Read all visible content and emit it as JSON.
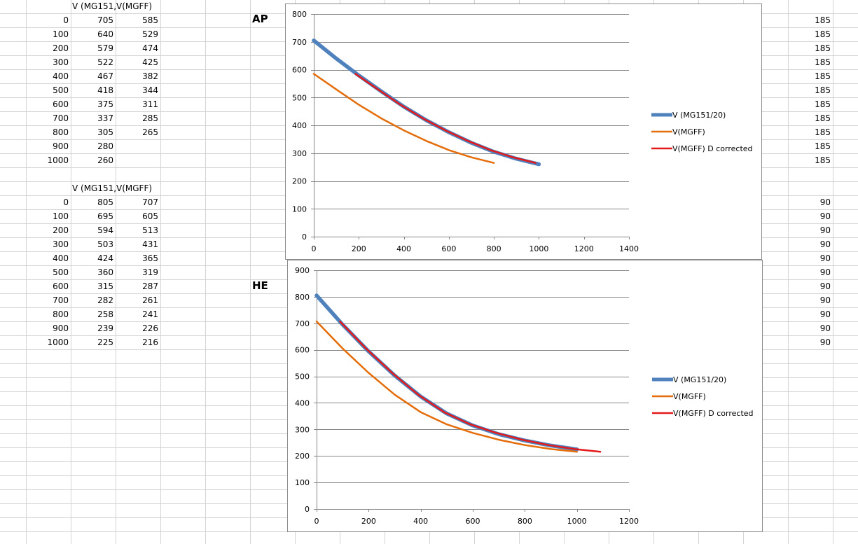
{
  "sheet": {
    "table_ap": {
      "headers": [
        "V (MG151,",
        "V(MGFF)"
      ],
      "rows": [
        [
          "0",
          "705",
          "585"
        ],
        [
          "100",
          "640",
          "529"
        ],
        [
          "200",
          "579",
          "474"
        ],
        [
          "300",
          "522",
          "425"
        ],
        [
          "400",
          "467",
          "382"
        ],
        [
          "500",
          "418",
          "344"
        ],
        [
          "600",
          "375",
          "311"
        ],
        [
          "700",
          "337",
          "285"
        ],
        [
          "800",
          "305",
          "265"
        ],
        [
          "900",
          "280",
          ""
        ],
        [
          "1000",
          "260",
          ""
        ]
      ]
    },
    "table_he": {
      "headers": [
        "V (MG151,",
        "V(MGFF)"
      ],
      "rows": [
        [
          "0",
          "805",
          "707"
        ],
        [
          "100",
          "695",
          "605"
        ],
        [
          "200",
          "594",
          "513"
        ],
        [
          "300",
          "503",
          "431"
        ],
        [
          "400",
          "424",
          "365"
        ],
        [
          "500",
          "360",
          "319"
        ],
        [
          "600",
          "315",
          "287"
        ],
        [
          "700",
          "282",
          "261"
        ],
        [
          "800",
          "258",
          "241"
        ],
        [
          "900",
          "239",
          "226"
        ],
        [
          "1000",
          "225",
          "216"
        ]
      ]
    },
    "right_col_ap": [
      "185",
      "185",
      "185",
      "185",
      "185",
      "185",
      "185",
      "185",
      "185",
      "185",
      "185"
    ],
    "right_col_he": [
      "90",
      "90",
      "90",
      "90",
      "90",
      "90",
      "90",
      "90",
      "90",
      "90",
      "90"
    ],
    "label_ap": "AP",
    "label_he": "HE",
    "colors": {
      "gridline": "#d4d4d4",
      "blue": "#4f81bd",
      "orange": "#e46c0a",
      "red": "#e31a1c"
    }
  },
  "chart_data": [
    {
      "type": "line",
      "xlim": [
        0,
        1400
      ],
      "ylim": [
        0,
        800
      ],
      "xticks": [
        0,
        200,
        400,
        600,
        800,
        1000,
        1200,
        1400
      ],
      "yticks": [
        0,
        100,
        200,
        300,
        400,
        500,
        600,
        700,
        800
      ],
      "grid": "horizontal",
      "legend_placement": "right",
      "series": [
        {
          "name": "V (MG151/20)",
          "color": "#4f81bd",
          "width": "thick",
          "x": [
            0,
            100,
            200,
            300,
            400,
            500,
            600,
            700,
            800,
            900,
            1000
          ],
          "y": [
            705,
            640,
            579,
            522,
            467,
            418,
            375,
            337,
            305,
            280,
            260
          ]
        },
        {
          "name": "V(MGFF)",
          "color": "#e46c0a",
          "width": "normal",
          "x": [
            0,
            100,
            200,
            300,
            400,
            500,
            600,
            700,
            800
          ],
          "y": [
            585,
            529,
            474,
            425,
            382,
            344,
            311,
            285,
            265
          ]
        },
        {
          "name": "V(MGFF) D corrected",
          "color": "#e31a1c",
          "width": "normal",
          "x": [
            185,
            285,
            385,
            485,
            585,
            685,
            785,
            885,
            985
          ],
          "y": [
            585,
            529,
            474,
            425,
            382,
            344,
            311,
            285,
            265
          ]
        }
      ]
    },
    {
      "type": "line",
      "xlim": [
        0,
        1200
      ],
      "ylim": [
        0,
        900
      ],
      "xticks": [
        0,
        200,
        400,
        600,
        800,
        1000,
        1200
      ],
      "yticks": [
        0,
        100,
        200,
        300,
        400,
        500,
        600,
        700,
        800,
        900
      ],
      "grid": "horizontal",
      "legend_placement": "right",
      "series": [
        {
          "name": "V (MG151/20)",
          "color": "#4f81bd",
          "width": "thick",
          "x": [
            0,
            100,
            200,
            300,
            400,
            500,
            600,
            700,
            800,
            900,
            1000
          ],
          "y": [
            805,
            695,
            594,
            503,
            424,
            360,
            315,
            282,
            258,
            239,
            225
          ]
        },
        {
          "name": "V(MGFF)",
          "color": "#e46c0a",
          "width": "normal",
          "x": [
            0,
            100,
            200,
            300,
            400,
            500,
            600,
            700,
            800,
            900,
            1000
          ],
          "y": [
            707,
            605,
            513,
            431,
            365,
            319,
            287,
            261,
            241,
            226,
            216
          ]
        },
        {
          "name": "V(MGFF) D corrected",
          "color": "#e31a1c",
          "width": "normal",
          "x": [
            90,
            190,
            290,
            390,
            490,
            590,
            690,
            790,
            890,
            990,
            1090
          ],
          "y": [
            707,
            605,
            513,
            431,
            365,
            319,
            287,
            261,
            241,
            226,
            216
          ]
        }
      ]
    }
  ]
}
